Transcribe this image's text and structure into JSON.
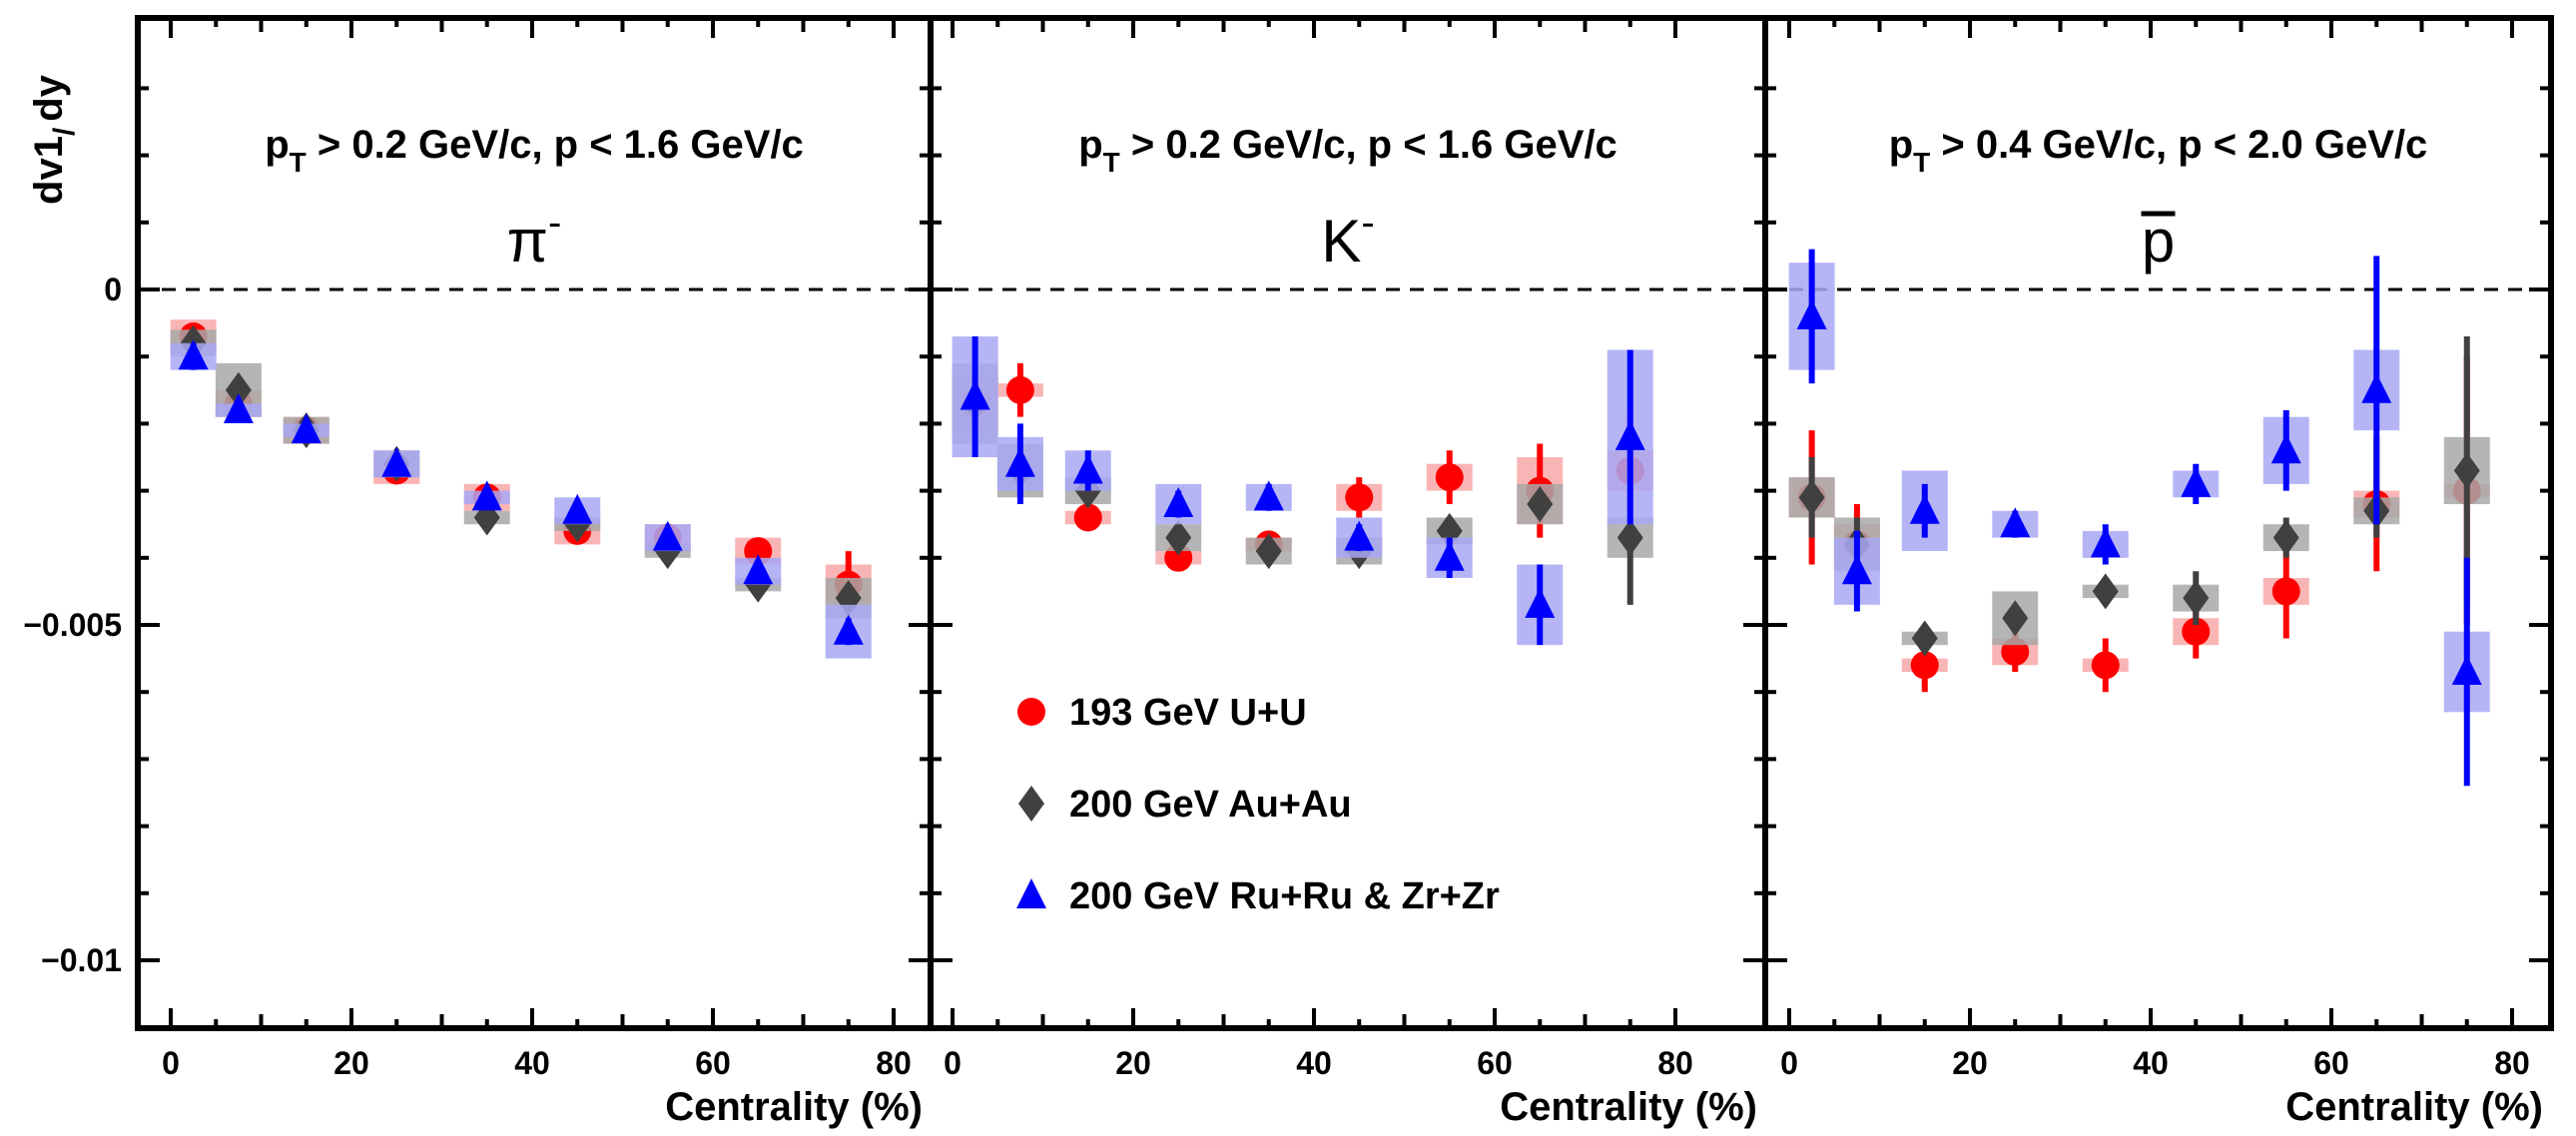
{
  "chart_data": {
    "type": "scatter",
    "ylabel": "dv1/dy",
    "xlabel": "Centrality (%)",
    "xlim": [
      -4,
      83
    ],
    "ylim": [
      -0.011,
      0.004
    ],
    "x_ticks": [
      "0",
      "20",
      "40",
      "60",
      "80"
    ],
    "y_ticks": [
      {
        "value": 0,
        "label": "0"
      },
      {
        "value": -0.005,
        "label": "−0.005"
      },
      {
        "value": -0.01,
        "label": "−0.01"
      }
    ],
    "legend": [
      {
        "name": "193 GeV U+U",
        "color": "#ff0000",
        "marker": "circle"
      },
      {
        "name": "200 GeV Au+Au",
        "color": "#404040",
        "marker": "diamond"
      },
      {
        "name": "200 GeV Ru+Ru & Zr+Zr",
        "color": "#0000ff",
        "marker": "triangle"
      }
    ],
    "legend_position": "lower-left of middle panel",
    "panels": [
      {
        "kinematics": "p > 0.2 GeV/c, p < 1.6 GeV/c",
        "particle": "π",
        "particle_superscript": "-",
        "series": [
          {
            "name": "193 GeV U+U",
            "points": [
              [
                2.5,
                -0.0007,
                0.0001,
                0.00025
              ],
              [
                7.5,
                -0.0017,
                0.0001,
                0.0002
              ],
              [
                15,
                -0.0021,
                0.0001,
                0.0002
              ],
              [
                25,
                -0.0027,
                0.0001,
                0.0002
              ],
              [
                35,
                -0.0031,
                0.0001,
                0.0002
              ],
              [
                45,
                -0.0036,
                0.0001,
                0.0002
              ],
              [
                55,
                -0.0037,
                0.0001,
                0.0002
              ],
              [
                65,
                -0.0039,
                0.0001,
                0.0002
              ],
              [
                75,
                -0.0044,
                0.0005,
                0.0003
              ]
            ]
          },
          {
            "name": "200 GeV Au+Au",
            "points": [
              [
                2.5,
                -0.0008,
                0.0001,
                0.0002
              ],
              [
                7.5,
                -0.0015,
                0.0001,
                0.0004
              ],
              [
                15,
                -0.0021,
                0.0001,
                0.0002
              ],
              [
                25,
                -0.0026,
                0.0001,
                0.0002
              ],
              [
                35,
                -0.0034,
                0.0001,
                0.0001
              ],
              [
                45,
                -0.0035,
                0.0001,
                0.0001
              ],
              [
                55,
                -0.0039,
                0.0001,
                0.0001
              ],
              [
                65,
                -0.0044,
                0.0001,
                0.0001
              ],
              [
                75,
                -0.0046,
                0.0001,
                0.0003
              ]
            ]
          },
          {
            "name": "200 GeV Ru+Ru & Zr+Zr",
            "points": [
              [
                2.5,
                -0.001,
                0.0002,
                0.0002
              ],
              [
                7.5,
                -0.0018,
                0.0001,
                0.0001
              ],
              [
                15,
                -0.0021,
                0.0001,
                0.0001
              ],
              [
                25,
                -0.0026,
                0.0001,
                0.0002
              ],
              [
                35,
                -0.0031,
                0.0001,
                0.0001
              ],
              [
                45,
                -0.0033,
                0.0001,
                0.0002
              ],
              [
                55,
                -0.0037,
                0.0001,
                0.0002
              ],
              [
                65,
                -0.0042,
                0.0001,
                0.0002
              ],
              [
                75,
                -0.0051,
                0.0002,
                0.0004
              ]
            ]
          }
        ]
      },
      {
        "kinematics": "p > 0.2 GeV/c, p < 1.6 GeV/c",
        "particle": "K",
        "particle_superscript": "-",
        "series": [
          {
            "name": "193 GeV U+U",
            "points": [
              [
                2.5,
                -0.0017,
                0.0005,
                0.0004
              ],
              [
                7.5,
                -0.0015,
                0.0004,
                0.0001
              ],
              [
                15,
                -0.0034,
                0.0001,
                0.0001
              ],
              [
                25,
                -0.004,
                0.0001,
                0.0001
              ],
              [
                35,
                -0.0038,
                0.0001,
                0.0001
              ],
              [
                45,
                -0.0031,
                0.0003,
                0.0002
              ],
              [
                55,
                -0.0028,
                0.0004,
                0.0002
              ],
              [
                65,
                -0.003,
                0.0007,
                0.0005
              ],
              [
                75,
                -0.0027,
                0.0009,
                0.0003
              ]
            ]
          },
          {
            "name": "200 GeV Au+Au",
            "points": [
              [
                2.5,
                -0.0017,
                0.0004,
                0.0006
              ],
              [
                7.5,
                -0.0027,
                0.0002,
                0.0004
              ],
              [
                15,
                -0.003,
                0.0001,
                0.0002
              ],
              [
                25,
                -0.0037,
                0.0002,
                0.0002
              ],
              [
                35,
                -0.0039,
                0.0001,
                0.0002
              ],
              [
                45,
                -0.0039,
                0.0001,
                0.0002
              ],
              [
                55,
                -0.0036,
                0.0001,
                0.0002
              ],
              [
                65,
                -0.0032,
                0.0002,
                0.0003
              ],
              [
                75,
                -0.0037,
                0.001,
                0.0003
              ]
            ]
          },
          {
            "name": "200 GeV Ru+Ru & Zr+Zr",
            "points": [
              [
                2.5,
                -0.0016,
                0.0009,
                0.0009
              ],
              [
                7.5,
                -0.0026,
                0.0006,
                0.0004
              ],
              [
                15,
                -0.0027,
                0.0003,
                0.0003
              ],
              [
                25,
                -0.0032,
                0.0002,
                0.0003
              ],
              [
                35,
                -0.0031,
                0.0002,
                0.0002
              ],
              [
                45,
                -0.0037,
                0.0002,
                0.0003
              ],
              [
                55,
                -0.004,
                0.0003,
                0.0003
              ],
              [
                65,
                -0.0047,
                0.0006,
                0.0006
              ],
              [
                75,
                -0.0022,
                0.0013,
                0.0013
              ]
            ]
          }
        ]
      },
      {
        "kinematics": "p > 0.4 GeV/c, p < 2.0 GeV/c",
        "particle": "p",
        "particle_superscript": "",
        "series": [
          {
            "name": "193 GeV U+U",
            "points": [
              [
                2.5,
                -0.0031,
                0.001,
                0.0003
              ],
              [
                7.5,
                -0.0038,
                0.0006,
                0.0003
              ],
              [
                15,
                -0.0056,
                0.0004,
                0.0001
              ],
              [
                25,
                -0.0054,
                0.0003,
                0.0002
              ],
              [
                35,
                -0.0056,
                0.0004,
                0.0001
              ],
              [
                45,
                -0.0051,
                0.0004,
                0.0002
              ],
              [
                55,
                -0.0045,
                0.0007,
                0.0002
              ],
              [
                65,
                -0.0032,
                0.001,
                0.0002
              ],
              [
                75,
                -0.003,
                0.002,
                0.0001
              ]
            ]
          },
          {
            "name": "200 GeV Au+Au",
            "points": [
              [
                2.5,
                -0.0031,
                0.0006,
                0.0003
              ],
              [
                7.5,
                -0.0038,
                0.0004,
                0.0004
              ],
              [
                15,
                -0.0052,
                0.0001,
                0.0001
              ],
              [
                25,
                -0.0049,
                0.0002,
                0.0004
              ],
              [
                35,
                -0.0045,
                0.0001,
                0.0001
              ],
              [
                45,
                -0.0046,
                0.0004,
                0.0002
              ],
              [
                55,
                -0.0037,
                0.0003,
                0.0002
              ],
              [
                65,
                -0.0033,
                0.0004,
                0.0002
              ],
              [
                75,
                -0.0027,
                0.002,
                0.0005
              ]
            ]
          },
          {
            "name": "200 GeV Ru+Ru & Zr+Zr",
            "points": [
              [
                2.5,
                -0.0004,
                0.001,
                0.0008
              ],
              [
                7.5,
                -0.0042,
                0.0006,
                0.0005
              ],
              [
                15,
                -0.0033,
                0.0004,
                0.0006
              ],
              [
                25,
                -0.0035,
                0.0002,
                0.0002
              ],
              [
                35,
                -0.0038,
                0.0003,
                0.0002
              ],
              [
                45,
                -0.0029,
                0.0003,
                0.0002
              ],
              [
                55,
                -0.0024,
                0.0006,
                0.0005
              ],
              [
                65,
                -0.0015,
                0.002,
                0.0006
              ],
              [
                75,
                -0.0057,
                0.0017,
                0.0006
              ]
            ]
          }
        ]
      }
    ]
  },
  "colors": {
    "red": "#ff0000",
    "red_sys": "#f8a8a8",
    "gray": "#404040",
    "gray_sys": "#a8a8a8",
    "blue": "#0000ff",
    "blue_sys": "#a8a8f4"
  }
}
